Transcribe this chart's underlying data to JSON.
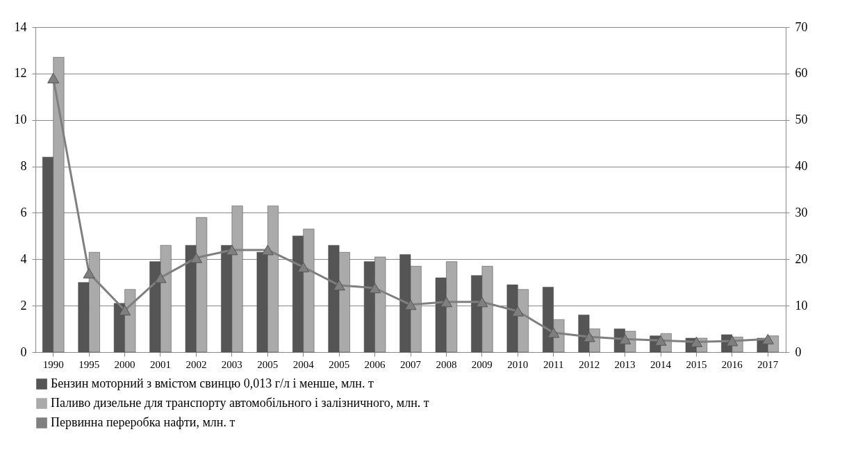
{
  "chart_data": {
    "type": "bar",
    "categories": [
      "1990",
      "1995",
      "2000",
      "2001",
      "2002",
      "2003",
      "2005",
      "2004",
      "2005",
      "2006",
      "2007",
      "2008",
      "2009",
      "2010",
      "2011",
      "2012",
      "2013",
      "2014",
      "2015",
      "2016",
      "2017"
    ],
    "series": [
      {
        "name": "Бензин моторний з вмістом свинцю 0,013 г/л і менше, млн. т",
        "color": "#555555",
        "values": [
          8.4,
          3.0,
          2.1,
          3.9,
          4.6,
          4.6,
          4.3,
          5.0,
          4.6,
          3.9,
          4.2,
          3.2,
          3.3,
          2.9,
          2.8,
          1.6,
          1.0,
          0.7,
          0.6,
          0.75,
          0.6
        ]
      },
      {
        "name": "Паливо дизельне для транспорту автомобільного і залізничного, млн. т",
        "color": "#aaaaaa",
        "values": [
          12.7,
          4.3,
          2.7,
          4.6,
          5.8,
          6.3,
          6.3,
          5.3,
          4.3,
          4.1,
          3.7,
          3.9,
          3.7,
          2.7,
          1.4,
          1.0,
          0.9,
          0.8,
          0.6,
          0.65,
          0.7
        ]
      },
      {
        "name": "Первинна переробка нафти, млн. т",
        "type": "line",
        "axis": "y2",
        "color": "#7f7f7f",
        "marker": "triangle",
        "values": [
          59,
          17,
          9,
          16,
          20.3,
          22,
          22,
          18.3,
          14.4,
          13.8,
          10.2,
          10.8,
          10.8,
          8.8,
          4.2,
          3.3,
          2.8,
          2.5,
          2.2,
          2.4,
          2.8
        ]
      }
    ],
    "ylim": [
      0,
      14
    ],
    "yticks": [
      0,
      2,
      4,
      6,
      8,
      10,
      12,
      14
    ],
    "y2lim": [
      0,
      70
    ],
    "y2ticks": [
      0,
      10,
      20,
      30,
      40,
      50,
      60,
      70
    ],
    "grid": "y",
    "legend": "bottom"
  }
}
